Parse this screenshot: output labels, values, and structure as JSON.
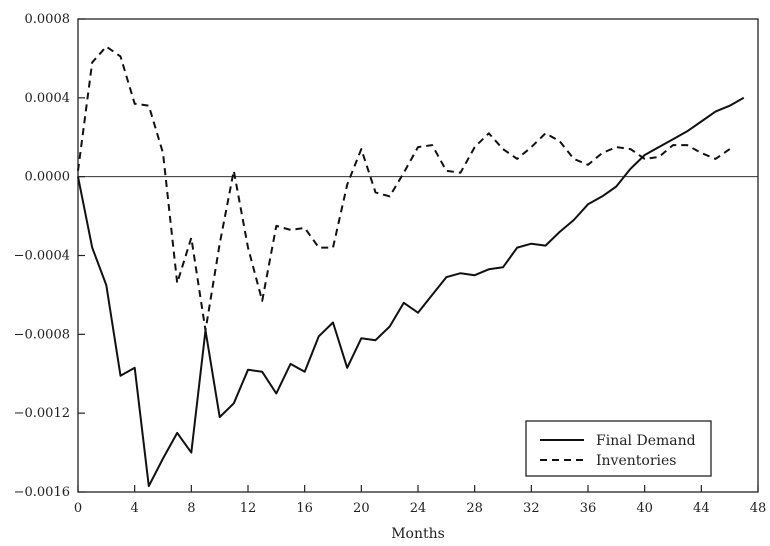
{
  "chart_data": {
    "type": "line",
    "title": "",
    "xlabel": "Months",
    "ylabel": "",
    "xlim": [
      0,
      48
    ],
    "ylim": [
      -0.0016,
      0.0008
    ],
    "x_ticks": [
      0,
      4,
      8,
      12,
      16,
      20,
      24,
      28,
      32,
      36,
      40,
      44,
      48
    ],
    "x_tick_labels": [
      "0",
      "4",
      "8",
      "12",
      "16",
      "20",
      "24",
      "28",
      "32",
      "36",
      "40",
      "44",
      "48"
    ],
    "y_ticks": [
      0.0008,
      0.0004,
      0.0,
      -0.0004,
      -0.0008,
      -0.0012,
      -0.0016
    ],
    "y_tick_labels": [
      "0.0008",
      "0.0004",
      "0.0000",
      "−0.0004",
      "−0.0008",
      "−0.0012",
      "−0.0016"
    ],
    "grid": false,
    "zero_line": true,
    "legend_position": "bottom-right",
    "series": [
      {
        "name": "Final Demand",
        "style": "solid",
        "x": [
          0,
          1,
          2,
          3,
          4,
          5,
          6,
          7,
          8,
          9,
          10,
          11,
          12,
          13,
          14,
          15,
          16,
          17,
          18,
          19,
          20,
          21,
          22,
          23,
          24,
          25,
          26,
          27,
          28,
          29,
          30,
          31,
          32,
          33,
          34,
          35,
          36,
          37,
          38,
          39,
          40,
          41,
          42,
          43,
          44,
          45,
          46,
          47
        ],
        "values": [
          0.0,
          -0.00036,
          -0.00055,
          -0.00101,
          -0.00097,
          -0.00157,
          -0.00143,
          -0.0013,
          -0.0014,
          -0.00078,
          -0.00122,
          -0.00115,
          -0.00098,
          -0.00099,
          -0.0011,
          -0.00095,
          -0.00099,
          -0.00081,
          -0.00074,
          -0.00097,
          -0.00082,
          -0.00083,
          -0.00076,
          -0.00064,
          -0.00069,
          -0.0006,
          -0.00051,
          -0.00049,
          -0.0005,
          -0.00047,
          -0.00046,
          -0.00036,
          -0.00034,
          -0.00035,
          -0.00028,
          -0.00022,
          -0.00014,
          -0.0001,
          -5e-05,
          4e-05,
          0.00011,
          0.00015,
          0.00019,
          0.00023,
          0.00028,
          0.00033,
          0.00036,
          0.0004
        ]
      },
      {
        "name": "Inventories",
        "style": "dashed",
        "x": [
          0,
          1,
          2,
          3,
          4,
          5,
          6,
          7,
          8,
          9,
          10,
          11,
          12,
          13,
          14,
          15,
          16,
          17,
          18,
          19,
          20,
          21,
          22,
          23,
          24,
          25,
          26,
          27,
          28,
          29,
          30,
          31,
          32,
          33,
          34,
          35,
          36,
          37,
          38,
          39,
          40,
          41,
          42,
          43,
          44,
          45,
          46
        ],
        "values": [
          3e-05,
          0.00058,
          0.00066,
          0.00061,
          0.00037,
          0.00036,
          0.00012,
          -0.00054,
          -0.00031,
          -0.00078,
          -0.00034,
          3e-05,
          -0.00036,
          -0.00063,
          -0.00025,
          -0.00027,
          -0.00026,
          -0.00036,
          -0.00036,
          -4e-05,
          0.00014,
          -8e-05,
          -0.0001,
          2e-05,
          0.00015,
          0.00016,
          3e-05,
          2e-05,
          0.00015,
          0.00022,
          0.00014,
          9e-05,
          0.00015,
          0.00022,
          0.00018,
          9e-05,
          6e-05,
          0.00012,
          0.00015,
          0.00014,
          9e-05,
          0.0001,
          0.00016,
          0.00016,
          0.00012,
          9e-05,
          0.00014
        ]
      }
    ]
  }
}
